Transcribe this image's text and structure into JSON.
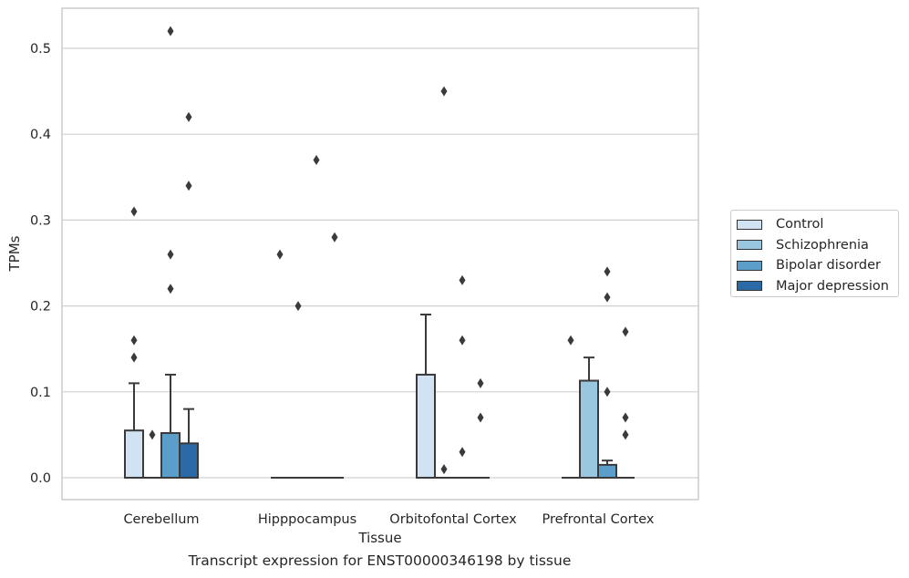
{
  "chart_data": {
    "type": "bar",
    "title": "",
    "caption": "Transcript expression for ENST00000346198 by tissue",
    "xlabel": "Tissue",
    "ylabel": "TPMs",
    "ylim": [
      -0.026,
      0.547
    ],
    "yticks": [
      "0.0",
      "0.1",
      "0.2",
      "0.3",
      "0.4",
      "0.5"
    ],
    "ytick_values": [
      0.0,
      0.1,
      0.2,
      0.3,
      0.4,
      0.5
    ],
    "grid": true,
    "legend_position": "right",
    "categories": [
      "Cerebellum",
      "Hipppocampus",
      "Orbitofontal Cortex",
      "Prefrontal Cortex"
    ],
    "series": [
      {
        "name": "Control",
        "color": "#d1e2f2",
        "values": [
          0.055,
          0.0,
          0.12,
          0.0
        ],
        "whisker_high": [
          0.11,
          null,
          0.19,
          null
        ],
        "outliers": [
          [
            0.31,
            0.16,
            0.14
          ],
          [
            0.26
          ],
          [],
          [
            0.16
          ]
        ]
      },
      {
        "name": "Schizophrenia",
        "color": "#9ac7e0",
        "values": [
          0.0,
          0.0,
          0.0,
          0.113
        ],
        "whisker_high": [
          null,
          null,
          null,
          0.14
        ],
        "outliers": [
          [
            0.05
          ],
          [
            0.2
          ],
          [
            0.45,
            0.01
          ],
          []
        ]
      },
      {
        "name": "Bipolar disorder",
        "color": "#5a9ec9",
        "values": [
          0.052,
          0.0,
          0.0,
          0.015
        ],
        "whisker_high": [
          0.12,
          null,
          null,
          0.02
        ],
        "outliers": [
          [
            0.52,
            0.26,
            0.22
          ],
          [
            0.37
          ],
          [
            0.23,
            0.16,
            0.03
          ],
          [
            0.24,
            0.21,
            0.1
          ]
        ]
      },
      {
        "name": "Major depression",
        "color": "#2b6aa6",
        "values": [
          0.04,
          0.0,
          0.0,
          0.0
        ],
        "whisker_high": [
          0.08,
          null,
          null,
          null
        ],
        "outliers": [
          [
            0.42,
            0.34
          ],
          [
            0.28
          ],
          [
            0.11,
            0.07
          ],
          [
            0.17,
            0.07,
            0.05
          ]
        ]
      }
    ]
  }
}
